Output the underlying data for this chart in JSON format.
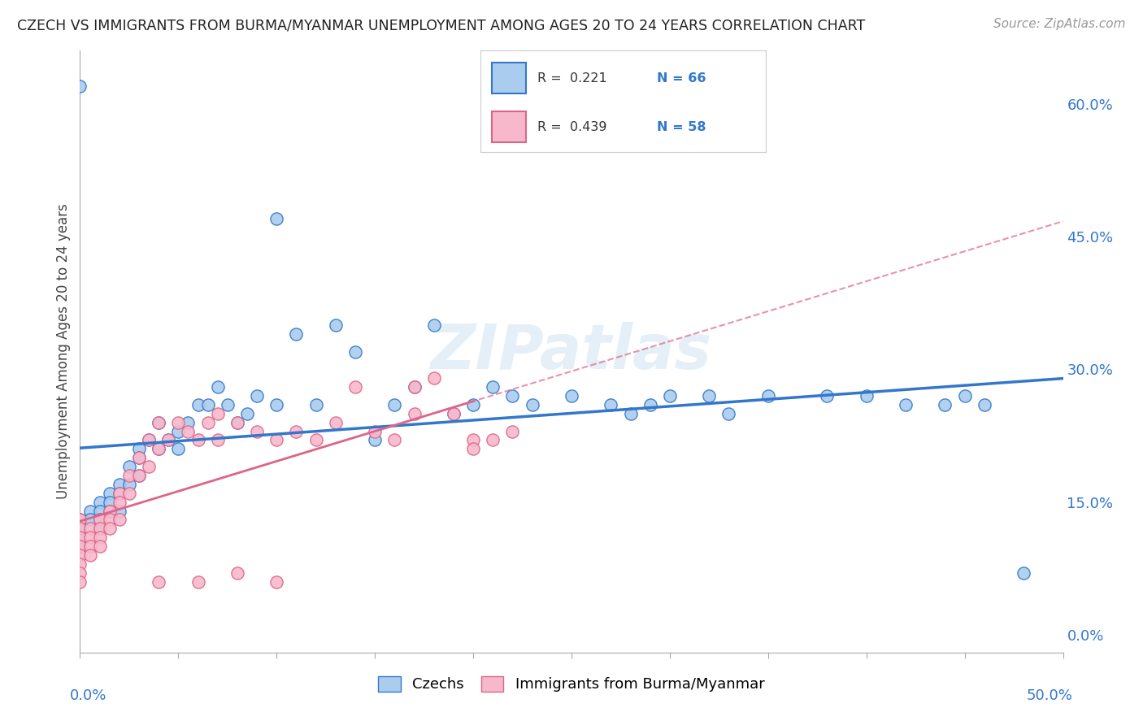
{
  "title": "CZECH VS IMMIGRANTS FROM BURMA/MYANMAR UNEMPLOYMENT AMONG AGES 20 TO 24 YEARS CORRELATION CHART",
  "source": "Source: ZipAtlas.com",
  "ylabel": "Unemployment Among Ages 20 to 24 years",
  "right_yticks": [
    0.0,
    0.15,
    0.3,
    0.45,
    0.6
  ],
  "right_yticklabels": [
    "0.0%",
    "15.0%",
    "30.0%",
    "45.0%",
    "60.0%"
  ],
  "xlim": [
    0.0,
    0.5
  ],
  "ylim": [
    -0.02,
    0.66
  ],
  "blue_color": "#aaccee",
  "blue_line_color": "#3377cc",
  "pink_color": "#f8b8cc",
  "pink_line_color": "#dd6688",
  "bg_color": "#ffffff",
  "grid_color": "#cccccc",
  "N_czech": 66,
  "N_burma": 58,
  "czech_x": [
    0.0,
    0.0,
    0.0,
    0.0,
    0.0,
    0.005,
    0.005,
    0.01,
    0.01,
    0.01,
    0.01,
    0.015,
    0.015,
    0.015,
    0.02,
    0.02,
    0.02,
    0.025,
    0.025,
    0.03,
    0.03,
    0.03,
    0.035,
    0.04,
    0.04,
    0.045,
    0.05,
    0.05,
    0.055,
    0.06,
    0.065,
    0.07,
    0.075,
    0.08,
    0.085,
    0.09,
    0.1,
    0.1,
    0.11,
    0.12,
    0.13,
    0.14,
    0.15,
    0.16,
    0.17,
    0.18,
    0.19,
    0.2,
    0.21,
    0.22,
    0.23,
    0.25,
    0.27,
    0.28,
    0.29,
    0.3,
    0.32,
    0.33,
    0.35,
    0.38,
    0.4,
    0.42,
    0.44,
    0.45,
    0.46,
    0.48
  ],
  "czech_y": [
    0.62,
    0.13,
    0.12,
    0.11,
    0.1,
    0.14,
    0.13,
    0.15,
    0.14,
    0.13,
    0.12,
    0.16,
    0.15,
    0.14,
    0.17,
    0.16,
    0.14,
    0.19,
    0.17,
    0.21,
    0.2,
    0.18,
    0.22,
    0.24,
    0.21,
    0.22,
    0.23,
    0.21,
    0.24,
    0.26,
    0.26,
    0.28,
    0.26,
    0.24,
    0.25,
    0.27,
    0.47,
    0.26,
    0.34,
    0.26,
    0.35,
    0.32,
    0.22,
    0.26,
    0.28,
    0.35,
    0.25,
    0.26,
    0.28,
    0.27,
    0.26,
    0.27,
    0.26,
    0.25,
    0.26,
    0.27,
    0.27,
    0.25,
    0.27,
    0.27,
    0.27,
    0.26,
    0.26,
    0.27,
    0.26,
    0.07
  ],
  "burma_x": [
    0.0,
    0.0,
    0.0,
    0.0,
    0.0,
    0.0,
    0.0,
    0.0,
    0.005,
    0.005,
    0.005,
    0.005,
    0.01,
    0.01,
    0.01,
    0.01,
    0.015,
    0.015,
    0.015,
    0.02,
    0.02,
    0.02,
    0.025,
    0.025,
    0.03,
    0.03,
    0.035,
    0.035,
    0.04,
    0.04,
    0.045,
    0.05,
    0.055,
    0.06,
    0.065,
    0.07,
    0.07,
    0.08,
    0.09,
    0.1,
    0.11,
    0.12,
    0.13,
    0.14,
    0.15,
    0.16,
    0.17,
    0.17,
    0.18,
    0.19,
    0.2,
    0.2,
    0.21,
    0.22,
    0.1,
    0.08,
    0.06,
    0.04
  ],
  "burma_y": [
    0.13,
    0.12,
    0.11,
    0.1,
    0.09,
    0.08,
    0.07,
    0.06,
    0.12,
    0.11,
    0.1,
    0.09,
    0.13,
    0.12,
    0.11,
    0.1,
    0.14,
    0.13,
    0.12,
    0.16,
    0.15,
    0.13,
    0.18,
    0.16,
    0.2,
    0.18,
    0.22,
    0.19,
    0.24,
    0.21,
    0.22,
    0.24,
    0.23,
    0.22,
    0.24,
    0.25,
    0.22,
    0.24,
    0.23,
    0.22,
    0.23,
    0.22,
    0.24,
    0.28,
    0.23,
    0.22,
    0.28,
    0.25,
    0.29,
    0.25,
    0.22,
    0.21,
    0.22,
    0.23,
    0.06,
    0.07,
    0.06,
    0.06
  ]
}
